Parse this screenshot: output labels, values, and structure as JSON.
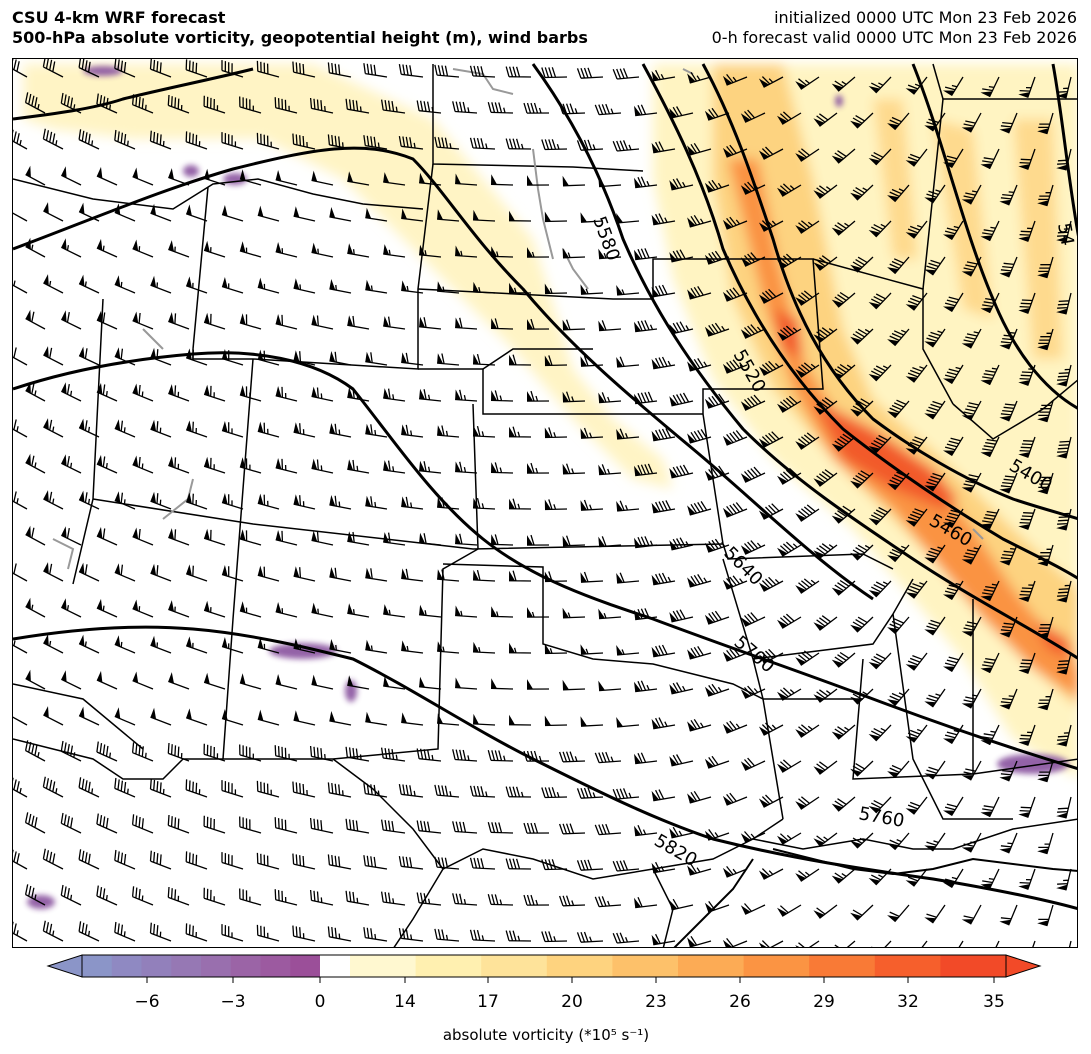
{
  "header": {
    "title_line1": "CSU 4-km WRF forecast",
    "title_line2": "500-hPa absolute vorticity, geopotential height (m), wind barbs",
    "init_line": "initialized 0000 UTC Mon 23 Feb 2026",
    "valid_line": "0-h forecast valid 0000 UTC Mon 23 Feb 2026"
  },
  "contour_labels": [
    "5580",
    "5520",
    "5400",
    "5460",
    "5640",
    "5700",
    "5760",
    "5820",
    "54"
  ],
  "colorbar": {
    "ticks": [
      "−6",
      "−3",
      "0",
      "14",
      "17",
      "20",
      "23",
      "26",
      "29",
      "32",
      "35"
    ],
    "label": "absolute vorticity (*10⁵ s⁻¹)",
    "colors": [
      "#8b95c8",
      "#8f89c2",
      "#9280bb",
      "#9678b4",
      "#996fae",
      "#9b64a6",
      "#9c5aa0",
      "#9b4f99",
      "#ffffff",
      "#fff8d0",
      "#fff0b0",
      "#fee39a",
      "#fed37f",
      "#fdc16a",
      "#fcab55",
      "#fb9443",
      "#f97a36",
      "#f65f2c",
      "#f24a28"
    ]
  },
  "map_colors": {
    "vorticity_light": "#fff3bf",
    "vorticity_mid": "#fdd27d",
    "vorticity_strong": "#f98c3c",
    "vorticity_max": "#f25a2c",
    "vorticity_negative": "#8e5aa3",
    "contour": "#000000",
    "lakes": "#999999"
  }
}
